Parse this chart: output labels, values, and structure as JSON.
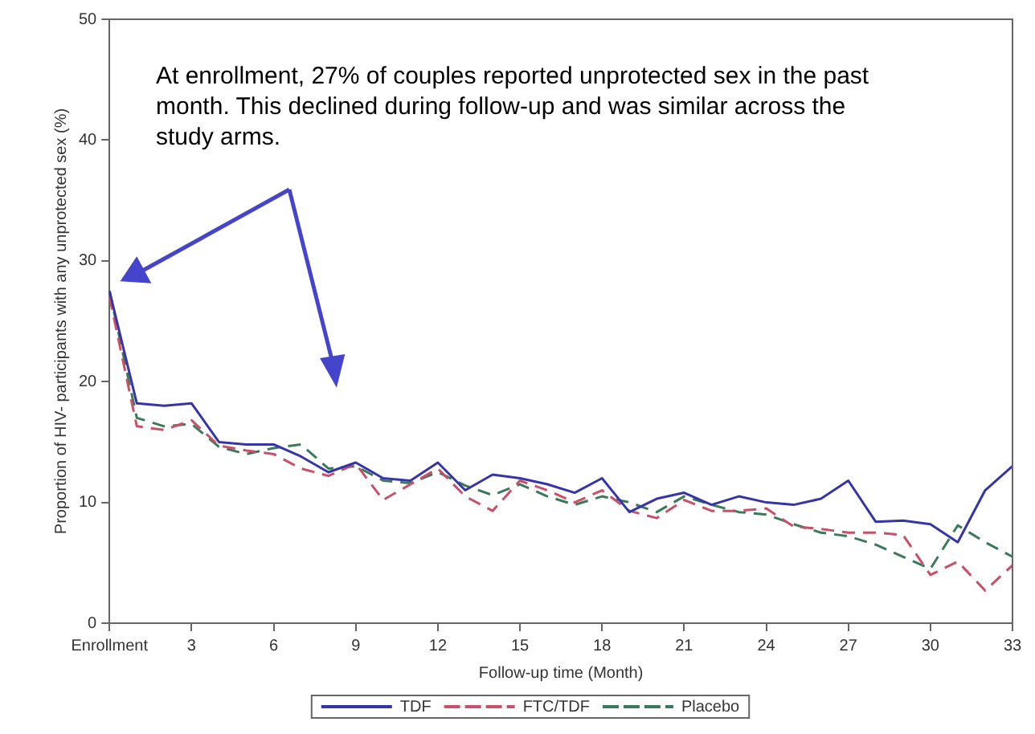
{
  "chart_data": {
    "type": "line",
    "xlabel": "Follow-up time (Month)",
    "ylabel": "Proportion of HIV- participants with any unprotected sex (%)",
    "annotations": [
      "At enrollment, 27% of couples reported unprotected sex in the past month.  This declined during follow-up and was similar across the study arms."
    ],
    "x": [
      0,
      1,
      2,
      3,
      4,
      5,
      6,
      7,
      8,
      9,
      10,
      11,
      12,
      13,
      14,
      15,
      16,
      17,
      18,
      19,
      20,
      21,
      22,
      23,
      24,
      25,
      26,
      27,
      28,
      29,
      30,
      31,
      32,
      33
    ],
    "series": [
      {
        "name": "TDF",
        "color": "#3535a8",
        "line_style": "solid",
        "values": [
          27.5,
          18.2,
          18,
          18.2,
          15,
          14.8,
          14.8,
          13.8,
          12.5,
          13.3,
          12,
          11.8,
          13.3,
          11,
          12.3,
          12,
          11.5,
          10.8,
          12,
          9.2,
          10.3,
          10.8,
          9.8,
          10.5,
          10,
          9.8,
          10.3,
          11.8,
          8.4,
          8.5,
          8.2,
          6.7,
          11,
          13
        ]
      },
      {
        "name": "FTC/TDF",
        "color": "#c85068",
        "line_style": "dashed",
        "values": [
          27,
          16.3,
          16,
          16.8,
          14.7,
          14.3,
          14,
          12.8,
          12.2,
          13.2,
          10.2,
          11.5,
          12.8,
          10.5,
          9.3,
          11.8,
          11,
          10,
          11,
          9.3,
          8.7,
          10.2,
          9.3,
          9.3,
          9.5,
          8,
          7.8,
          7.5,
          7.5,
          7.3,
          4,
          5.1,
          2.7,
          4.8
        ]
      },
      {
        "name": "Placebo",
        "color": "#3a7a5a",
        "line_style": "dashed",
        "values": [
          27.5,
          17,
          16.3,
          16.5,
          14.6,
          14,
          14.5,
          14.8,
          12.8,
          13,
          11.8,
          11.6,
          12.5,
          11.4,
          10.6,
          11.5,
          10.5,
          9.8,
          10.5,
          10,
          9.2,
          10.5,
          9.8,
          9.2,
          9,
          8.2,
          7.5,
          7.2,
          6.5,
          5.5,
          4.5,
          8.1,
          6.7,
          5.5
        ]
      }
    ],
    "xlim": [
      0,
      33
    ],
    "xticks": [
      {
        "value": 0,
        "label": "Enrollment"
      },
      3,
      6,
      9,
      12,
      15,
      18,
      21,
      24,
      27,
      30,
      33
    ],
    "ylim": [
      0,
      50
    ],
    "yticks": [
      0,
      10,
      20,
      30,
      40,
      50
    ],
    "grid": false,
    "legend": "bottom",
    "marker": "none"
  }
}
